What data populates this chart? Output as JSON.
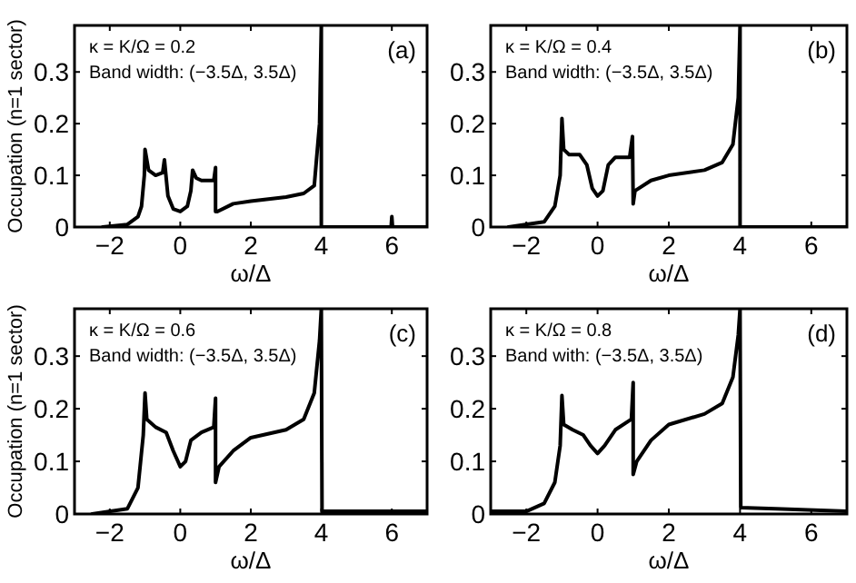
{
  "chart_data": [
    {
      "type": "line",
      "xlabel": "ω/Δ",
      "ylabel": "Occupation (n=1 sector)",
      "xlim": [
        -3,
        7
      ],
      "ylim": [
        0,
        0.39
      ],
      "xticks": [
        -2,
        0,
        2,
        4,
        6
      ],
      "yticks": [
        0,
        0.1,
        0.2,
        0.3
      ],
      "annotations": [
        "κ = K/Ω = 0.2",
        "Band width: (−3.5Δ, 3.5Δ)",
        "(a)"
      ],
      "marker": "none",
      "line_style": "solid",
      "grid": false,
      "series": [
        {
          "color": "#000000",
          "x": [
            -2.2,
            -1.5,
            -1.2,
            -1.1,
            -1.02,
            -1.0,
            -0.9,
            -0.7,
            -0.5,
            -0.45,
            -0.35,
            -0.2,
            0,
            0.2,
            0.3,
            0.35,
            0.45,
            0.6,
            0.95,
            1.0,
            1.0,
            1.05,
            1.5,
            2,
            3,
            3.5,
            3.8,
            3.95,
            4.0,
            4.0,
            5.98,
            6,
            6.02,
            7
          ],
          "values": [
            0,
            0.005,
            0.02,
            0.04,
            0.1,
            0.15,
            0.11,
            0.1,
            0.105,
            0.13,
            0.06,
            0.035,
            0.03,
            0.04,
            0.07,
            0.11,
            0.095,
            0.09,
            0.09,
            0.115,
            0.03,
            0.03,
            0.045,
            0.05,
            0.058,
            0.065,
            0.08,
            0.2,
            0.39,
            0,
            0,
            0.02,
            0,
            0
          ]
        }
      ]
    },
    {
      "type": "line",
      "xlabel": "ω/Δ",
      "xlim": [
        -3,
        7
      ],
      "ylim": [
        0,
        0.39
      ],
      "xticks": [
        -2,
        0,
        2,
        4,
        6
      ],
      "yticks": [
        0,
        0.1,
        0.2,
        0.3
      ],
      "annotations": [
        "κ = K/Ω = 0.4",
        "Band width: (−3.5Δ, 3.5Δ)",
        "(b)"
      ],
      "marker": "none",
      "line_style": "solid",
      "grid": false,
      "series": [
        {
          "color": "#000000",
          "x": [
            -2.5,
            -1.5,
            -1.2,
            -1.05,
            -1.0,
            -0.95,
            -0.8,
            -0.5,
            -0.3,
            -0.15,
            0,
            0.15,
            0.3,
            0.5,
            0.9,
            0.98,
            1.0,
            1.05,
            1.5,
            2,
            3,
            3.5,
            3.8,
            3.95,
            4.0,
            4.0,
            7
          ],
          "values": [
            0,
            0.01,
            0.04,
            0.1,
            0.21,
            0.15,
            0.14,
            0.14,
            0.12,
            0.075,
            0.06,
            0.07,
            0.12,
            0.135,
            0.135,
            0.175,
            0.045,
            0.07,
            0.09,
            0.1,
            0.11,
            0.125,
            0.16,
            0.25,
            0.39,
            0,
            0
          ]
        }
      ]
    },
    {
      "type": "line",
      "xlabel": "ω/Δ",
      "ylabel": "Occupation (n=1 sector)",
      "xlim": [
        -3,
        7
      ],
      "ylim": [
        0,
        0.39
      ],
      "xticks": [
        -2,
        0,
        2,
        4,
        6
      ],
      "yticks": [
        0,
        0.1,
        0.2,
        0.3
      ],
      "annotations": [
        "κ = K/Ω = 0.6",
        "Band width: (−3.5Δ, 3.5Δ)",
        "(c)"
      ],
      "marker": "none",
      "line_style": "solid",
      "grid": false,
      "series": [
        {
          "color": "#000000",
          "x": [
            -2.5,
            -1.5,
            -1.2,
            -1.05,
            -1.0,
            -0.95,
            -0.7,
            -0.4,
            -0.2,
            0,
            0.15,
            0.3,
            0.6,
            0.95,
            1.0,
            1.0,
            1.1,
            1.5,
            2,
            3,
            3.5,
            3.8,
            3.95,
            4.0,
            4.02,
            7
          ],
          "values": [
            0,
            0.01,
            0.05,
            0.15,
            0.23,
            0.18,
            0.165,
            0.155,
            0.12,
            0.09,
            0.1,
            0.14,
            0.155,
            0.165,
            0.22,
            0.06,
            0.09,
            0.12,
            0.145,
            0.16,
            0.18,
            0.23,
            0.33,
            0.39,
            0.005,
            0.005
          ]
        }
      ]
    },
    {
      "type": "line",
      "xlabel": "ω/Δ",
      "xlim": [
        -3,
        7
      ],
      "ylim": [
        0,
        0.39
      ],
      "xticks": [
        -2,
        0,
        2,
        4,
        6
      ],
      "yticks": [
        0,
        0.1,
        0.2,
        0.3
      ],
      "annotations": [
        "κ = K/Ω = 0.8",
        "Band with: (−3.5Δ, 3.5Δ)",
        "(d)"
      ],
      "marker": "none",
      "line_style": "solid",
      "grid": false,
      "series": [
        {
          "color": "#000000",
          "x": [
            -3,
            -2,
            -1.5,
            -1.2,
            -1.05,
            -1.0,
            -0.95,
            -0.7,
            -0.4,
            -0.2,
            0,
            0.2,
            0.5,
            0.95,
            1.0,
            1.0,
            1.1,
            1.5,
            2,
            3,
            3.5,
            3.8,
            3.95,
            4.0,
            4.02,
            5,
            7
          ],
          "values": [
            0.005,
            0.005,
            0.02,
            0.06,
            0.13,
            0.225,
            0.17,
            0.16,
            0.15,
            0.13,
            0.115,
            0.13,
            0.16,
            0.18,
            0.25,
            0.075,
            0.1,
            0.14,
            0.17,
            0.19,
            0.21,
            0.26,
            0.34,
            0.39,
            0.012,
            0.01,
            0.005
          ]
        }
      ]
    }
  ]
}
